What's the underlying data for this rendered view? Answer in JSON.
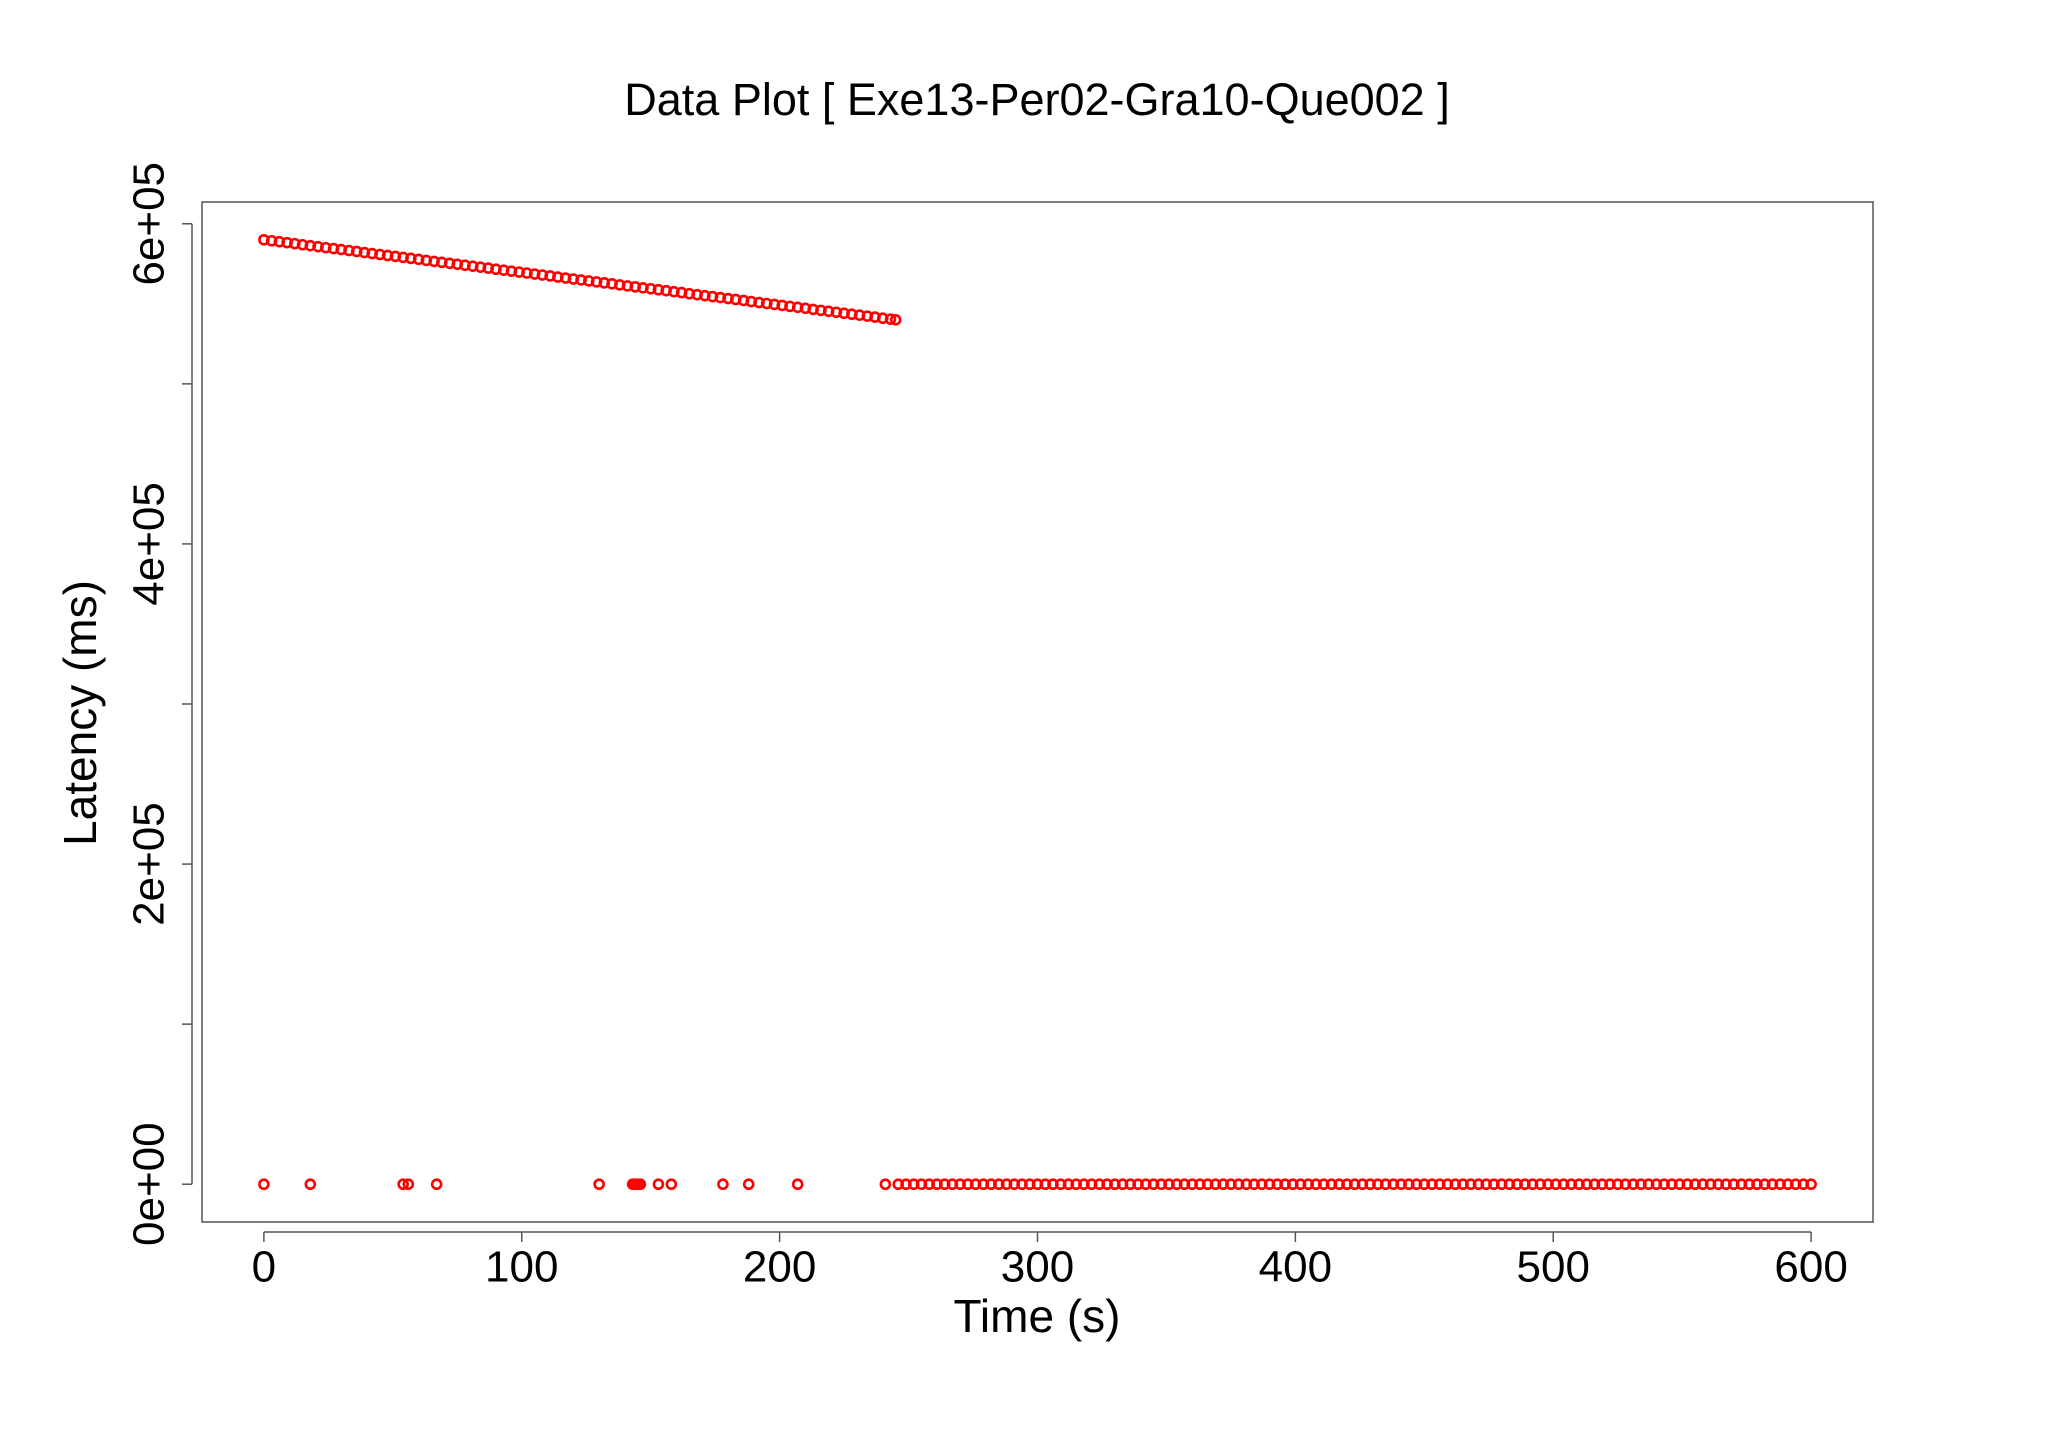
{
  "chart_data": {
    "type": "scatter",
    "title": "Data Plot [ Exe13-Per02-Gra10-Que002 ]",
    "x_label": "Time (s)",
    "y_label": "Latency (ms)",
    "color": "#ff0000",
    "xlim": [
      -24,
      624
    ],
    "ylim": [
      -23600,
      613600
    ],
    "xticks": [
      0,
      100,
      200,
      300,
      400,
      500,
      600
    ],
    "yticks": [
      {
        "value": 0,
        "label": "0e+00"
      },
      {
        "value": 200000,
        "label": "2e+05"
      },
      {
        "value": 400000,
        "label": "4e+05"
      },
      {
        "value": 600000,
        "label": "6e+05"
      }
    ],
    "yminor_ticks": [
      100000,
      300000,
      500000
    ],
    "x": [
      0,
      3,
      6,
      9,
      12,
      15,
      18,
      21,
      24,
      27,
      30,
      33,
      36,
      39,
      42,
      45,
      48,
      51,
      54,
      57,
      60,
      63,
      66,
      69,
      72,
      75,
      78,
      81,
      84,
      87,
      90,
      93,
      96,
      99,
      102,
      105,
      108,
      111,
      114,
      117,
      120,
      123,
      126,
      129,
      132,
      135,
      138,
      141,
      144,
      147,
      150,
      153,
      156,
      159,
      162,
      165,
      168,
      171,
      174,
      177,
      180,
      183,
      186,
      189,
      192,
      195,
      198,
      201,
      204,
      207,
      210,
      213,
      216,
      219,
      222,
      225,
      228,
      231,
      234,
      237,
      240,
      243,
      245,
      0,
      18,
      54,
      56,
      67,
      130,
      143,
      144,
      145,
      146,
      153,
      158,
      178,
      188,
      207,
      241,
      246,
      249,
      252,
      255,
      258,
      261,
      264,
      267,
      270,
      273,
      276,
      279,
      282,
      285,
      288,
      291,
      294,
      297,
      300,
      303,
      306,
      309,
      312,
      315,
      318,
      321,
      324,
      327,
      330,
      333,
      336,
      339,
      342,
      345,
      348,
      351,
      354,
      357,
      360,
      363,
      366,
      369,
      372,
      375,
      378,
      381,
      384,
      387,
      390,
      393,
      396,
      399,
      402,
      405,
      408,
      411,
      414,
      417,
      420,
      423,
      426,
      429,
      432,
      435,
      438,
      441,
      444,
      447,
      450,
      453,
      456,
      459,
      462,
      465,
      468,
      471,
      474,
      477,
      480,
      483,
      486,
      489,
      492,
      495,
      498,
      501,
      504,
      507,
      510,
      513,
      516,
      519,
      522,
      525,
      528,
      531,
      534,
      537,
      540,
      543,
      546,
      549,
      552,
      555,
      558,
      561,
      564,
      567,
      570,
      573,
      576,
      579,
      582,
      585,
      588,
      591,
      594,
      597,
      600
    ],
    "values": [
      590000,
      589400,
      588800,
      588200,
      587600,
      586900,
      586300,
      585700,
      585100,
      584500,
      583900,
      583300,
      582700,
      582000,
      581400,
      580800,
      580200,
      579600,
      579000,
      578400,
      577800,
      577100,
      576500,
      575900,
      575300,
      574700,
      574100,
      573500,
      572900,
      572300,
      571600,
      571000,
      570400,
      569800,
      569200,
      568600,
      568000,
      567400,
      566700,
      566100,
      565500,
      564900,
      564300,
      563700,
      563100,
      562500,
      561800,
      561200,
      560600,
      560000,
      559400,
      558800,
      558200,
      557600,
      557000,
      556300,
      555700,
      555100,
      554500,
      553900,
      553300,
      552700,
      552100,
      551400,
      550800,
      550200,
      549600,
      549000,
      548400,
      547800,
      547200,
      546500,
      545900,
      545300,
      544700,
      544100,
      543500,
      542900,
      542300,
      541700,
      541000,
      540400,
      540000,
      0,
      0,
      0,
      0,
      0,
      0,
      0,
      0,
      0,
      0,
      0,
      0,
      0,
      0,
      0,
      0,
      0,
      0,
      0,
      0,
      0,
      0,
      0,
      0,
      0,
      0,
      0,
      0,
      0,
      0,
      0,
      0,
      0,
      0,
      0,
      0,
      0,
      0,
      0,
      0,
      0,
      0,
      0,
      0,
      0,
      0,
      0,
      0,
      0,
      0,
      0,
      0,
      0,
      0,
      0,
      0,
      0,
      0,
      0,
      0,
      0,
      0,
      0,
      0,
      0,
      0,
      0,
      0,
      0,
      0,
      0,
      0,
      0,
      0,
      0,
      0,
      0,
      0,
      0,
      0,
      0,
      0,
      0,
      0,
      0,
      0,
      0,
      0,
      0,
      0,
      0,
      0,
      0,
      0,
      0,
      0,
      0,
      0,
      0,
      0,
      0,
      0,
      0,
      0,
      0,
      0,
      0,
      0,
      0,
      0,
      0,
      0,
      0,
      0,
      0,
      0,
      0,
      0,
      0,
      0,
      0,
      0,
      0,
      0,
      0,
      0,
      0,
      0,
      0,
      0,
      0,
      0,
      0,
      0,
      0
    ]
  }
}
